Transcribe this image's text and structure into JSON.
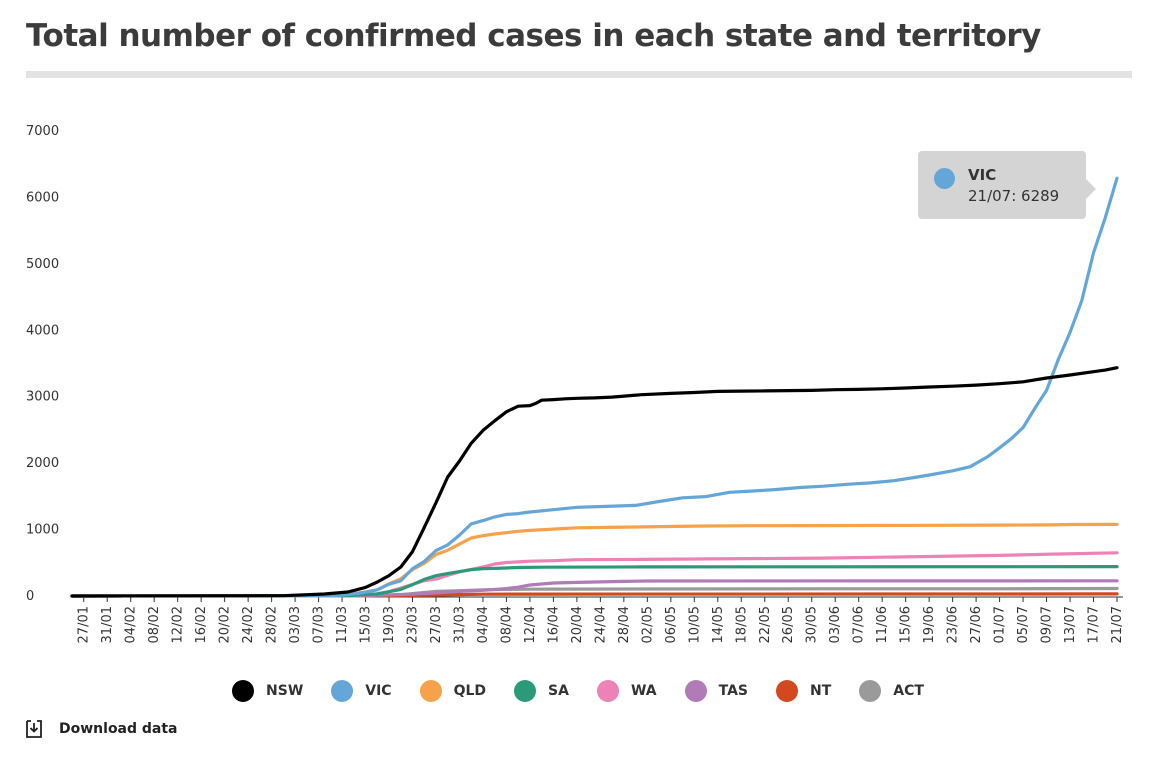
{
  "title": "Total number of confirmed cases in each state and territory",
  "download_label": "Download data",
  "tooltip": {
    "series": "VIC",
    "text": "21/07: 6289",
    "color": "#65a6d8"
  },
  "chart_data": {
    "type": "line",
    "title": "Total number of confirmed cases in each state and territory",
    "xlabel": "",
    "ylabel": "",
    "ylim": [
      0,
      7000
    ],
    "yticks": [
      0,
      1000,
      2000,
      3000,
      4000,
      5000,
      6000,
      7000
    ],
    "grid": false,
    "legend_position": "bottom",
    "x_start": "25/01",
    "x_end": "21/07",
    "x_tick_labels": [
      "27/01",
      "31/01",
      "04/02",
      "08/02",
      "12/02",
      "16/02",
      "20/02",
      "24/02",
      "28/02",
      "03/03",
      "07/03",
      "11/03",
      "15/03",
      "19/03",
      "23/03",
      "27/03",
      "31/03",
      "04/04",
      "08/04",
      "12/04",
      "16/04",
      "20/04",
      "24/04",
      "28/04",
      "02/05",
      "06/05",
      "10/05",
      "14/05",
      "18/05",
      "22/05",
      "26/05",
      "30/05",
      "03/06",
      "07/06",
      "11/06",
      "15/06",
      "19/06",
      "23/06",
      "27/06",
      "01/07",
      "05/07",
      "09/07",
      "13/07",
      "17/07",
      "21/07"
    ],
    "series": [
      {
        "name": "NSW",
        "color": "#000000",
        "points": [
          [
            "25/01",
            0
          ],
          [
            "01/03",
            5
          ],
          [
            "08/03",
            30
          ],
          [
            "12/03",
            60
          ],
          [
            "15/03",
            130
          ],
          [
            "17/03",
            210
          ],
          [
            "19/03",
            307
          ],
          [
            "21/03",
            436
          ],
          [
            "23/03",
            669
          ],
          [
            "25/03",
            1029
          ],
          [
            "27/03",
            1405
          ],
          [
            "29/03",
            1791
          ],
          [
            "31/03",
            2032
          ],
          [
            "02/04",
            2298
          ],
          [
            "04/04",
            2493
          ],
          [
            "06/04",
            2637
          ],
          [
            "08/04",
            2773
          ],
          [
            "10/04",
            2857
          ],
          [
            "12/04",
            2866
          ],
          [
            "13/04",
            2900
          ],
          [
            "14/04",
            2947
          ],
          [
            "16/04",
            2957
          ],
          [
            "18/04",
            2969
          ],
          [
            "20/04",
            2976
          ],
          [
            "23/04",
            2982
          ],
          [
            "26/04",
            2994
          ],
          [
            "01/05",
            3031
          ],
          [
            "06/05",
            3050
          ],
          [
            "10/05",
            3063
          ],
          [
            "14/05",
            3080
          ],
          [
            "18/05",
            3084
          ],
          [
            "22/05",
            3087
          ],
          [
            "26/05",
            3092
          ],
          [
            "30/05",
            3095
          ],
          [
            "03/06",
            3106
          ],
          [
            "07/06",
            3110
          ],
          [
            "11/06",
            3119
          ],
          [
            "15/06",
            3131
          ],
          [
            "19/06",
            3146
          ],
          [
            "23/06",
            3158
          ],
          [
            "27/06",
            3175
          ],
          [
            "01/07",
            3196
          ],
          [
            "05/07",
            3225
          ],
          [
            "09/07",
            3282
          ],
          [
            "13/07",
            3327
          ],
          [
            "17/07",
            3376
          ],
          [
            "19/07",
            3400
          ],
          [
            "21/07",
            3437
          ]
        ]
      },
      {
        "name": "VIC",
        "color": "#65a6d8",
        "points": [
          [
            "25/01",
            0
          ],
          [
            "10/03",
            5
          ],
          [
            "14/03",
            40
          ],
          [
            "17/03",
            94
          ],
          [
            "19/03",
            178
          ],
          [
            "21/03",
            229
          ],
          [
            "23/03",
            411
          ],
          [
            "25/03",
            520
          ],
          [
            "27/03",
            685
          ],
          [
            "29/03",
            769
          ],
          [
            "31/03",
            917
          ],
          [
            "02/04",
            1085
          ],
          [
            "04/04",
            1135
          ],
          [
            "06/04",
            1191
          ],
          [
            "08/04",
            1228
          ],
          [
            "10/04",
            1241
          ],
          [
            "12/04",
            1265
          ],
          [
            "16/04",
            1299
          ],
          [
            "20/04",
            1336
          ],
          [
            "25/04",
            1349
          ],
          [
            "30/04",
            1364
          ],
          [
            "04/05",
            1423
          ],
          [
            "08/05",
            1478
          ],
          [
            "12/05",
            1496
          ],
          [
            "16/05",
            1561
          ],
          [
            "20/05",
            1581
          ],
          [
            "24/05",
            1603
          ],
          [
            "28/05",
            1634
          ],
          [
            "01/06",
            1653
          ],
          [
            "05/06",
            1681
          ],
          [
            "09/06",
            1702
          ],
          [
            "13/06",
            1736
          ],
          [
            "17/06",
            1792
          ],
          [
            "20/06",
            1836
          ],
          [
            "23/06",
            1884
          ],
          [
            "26/06",
            1947
          ],
          [
            "29/06",
            2099
          ],
          [
            "01/07",
            2231
          ],
          [
            "03/07",
            2368
          ],
          [
            "05/07",
            2536
          ],
          [
            "07/07",
            2824
          ],
          [
            "09/07",
            3098
          ],
          [
            "11/07",
            3560
          ],
          [
            "13/07",
            3967
          ],
          [
            "15/07",
            4448
          ],
          [
            "17/07",
            5165
          ],
          [
            "19/07",
            5696
          ],
          [
            "21/07",
            6289
          ]
        ]
      },
      {
        "name": "QLD",
        "color": "#f5a24a",
        "points": [
          [
            "25/01",
            0
          ],
          [
            "10/03",
            5
          ],
          [
            "15/03",
            61
          ],
          [
            "17/03",
            94
          ],
          [
            "19/03",
            184
          ],
          [
            "21/03",
            259
          ],
          [
            "23/03",
            397
          ],
          [
            "25/03",
            493
          ],
          [
            "27/03",
            625
          ],
          [
            "29/03",
            689
          ],
          [
            "31/03",
            781
          ],
          [
            "02/04",
            873
          ],
          [
            "04/04",
            907
          ],
          [
            "06/04",
            934
          ],
          [
            "08/04",
            953
          ],
          [
            "10/04",
            974
          ],
          [
            "12/04",
            987
          ],
          [
            "16/04",
            1007
          ],
          [
            "20/04",
            1026
          ],
          [
            "25/04",
            1033
          ],
          [
            "30/04",
            1038
          ],
          [
            "10/05",
            1052
          ],
          [
            "20/05",
            1058
          ],
          [
            "01/06",
            1060
          ],
          [
            "01/07",
            1067
          ],
          [
            "10/07",
            1071
          ],
          [
            "13/07",
            1076
          ],
          [
            "21/07",
            1078
          ]
        ]
      },
      {
        "name": "SA",
        "color": "#2b9a78",
        "points": [
          [
            "25/01",
            0
          ],
          [
            "12/03",
            5
          ],
          [
            "17/03",
            30
          ],
          [
            "21/03",
            100
          ],
          [
            "23/03",
            170
          ],
          [
            "25/03",
            250
          ],
          [
            "27/03",
            305
          ],
          [
            "29/03",
            337
          ],
          [
            "31/03",
            367
          ],
          [
            "02/04",
            396
          ],
          [
            "04/04",
            411
          ],
          [
            "06/04",
            416
          ],
          [
            "10/04",
            429
          ],
          [
            "14/04",
            433
          ],
          [
            "01/05",
            438
          ],
          [
            "01/06",
            440
          ],
          [
            "21/07",
            443
          ]
        ]
      },
      {
        "name": "WA",
        "color": "#ec82b5",
        "points": [
          [
            "25/01",
            0
          ],
          [
            "14/03",
            5
          ],
          [
            "17/03",
            35
          ],
          [
            "19/03",
            64
          ],
          [
            "21/03",
            120
          ],
          [
            "23/03",
            175
          ],
          [
            "25/03",
            231
          ],
          [
            "27/03",
            255
          ],
          [
            "29/03",
            311
          ],
          [
            "31/03",
            364
          ],
          [
            "02/04",
            400
          ],
          [
            "04/04",
            436
          ],
          [
            "06/04",
            481
          ],
          [
            "08/04",
            505
          ],
          [
            "10/04",
            514
          ],
          [
            "12/04",
            524
          ],
          [
            "16/04",
            532
          ],
          [
            "20/04",
            546
          ],
          [
            "01/05",
            551
          ],
          [
            "01/06",
            570
          ],
          [
            "01/07",
            611
          ],
          [
            "10/07",
            630
          ],
          [
            "21/07",
            651
          ]
        ]
      },
      {
        "name": "TAS",
        "color": "#b07bb7",
        "points": [
          [
            "25/01",
            0
          ],
          [
            "15/03",
            5
          ],
          [
            "23/03",
            28
          ],
          [
            "27/03",
            47
          ],
          [
            "31/03",
            69
          ],
          [
            "04/04",
            86
          ],
          [
            "08/04",
            111
          ],
          [
            "10/04",
            133
          ],
          [
            "12/04",
            165
          ],
          [
            "14/04",
            180
          ],
          [
            "16/04",
            195
          ],
          [
            "20/04",
            205
          ],
          [
            "24/04",
            212
          ],
          [
            "28/04",
            220
          ],
          [
            "02/05",
            226
          ],
          [
            "21/07",
            229
          ]
        ]
      },
      {
        "name": "NT",
        "color": "#d2481f",
        "points": [
          [
            "25/01",
            0
          ],
          [
            "20/03",
            5
          ],
          [
            "27/03",
            15
          ],
          [
            "04/04",
            27
          ],
          [
            "15/04",
            28
          ],
          [
            "01/07",
            30
          ],
          [
            "21/07",
            31
          ]
        ]
      },
      {
        "name": "ACT",
        "color": "#9a9a9a",
        "points": [
          [
            "25/01",
            0
          ],
          [
            "15/03",
            3
          ],
          [
            "21/03",
            19
          ],
          [
            "25/03",
            53
          ],
          [
            "27/03",
            71
          ],
          [
            "31/03",
            80
          ],
          [
            "04/04",
            93
          ],
          [
            "08/04",
            100
          ],
          [
            "12/04",
            103
          ],
          [
            "16/04",
            104
          ],
          [
            "01/05",
            106
          ],
          [
            "01/06",
            108
          ],
          [
            "01/07",
            108
          ],
          [
            "21/07",
            113
          ]
        ]
      }
    ]
  }
}
